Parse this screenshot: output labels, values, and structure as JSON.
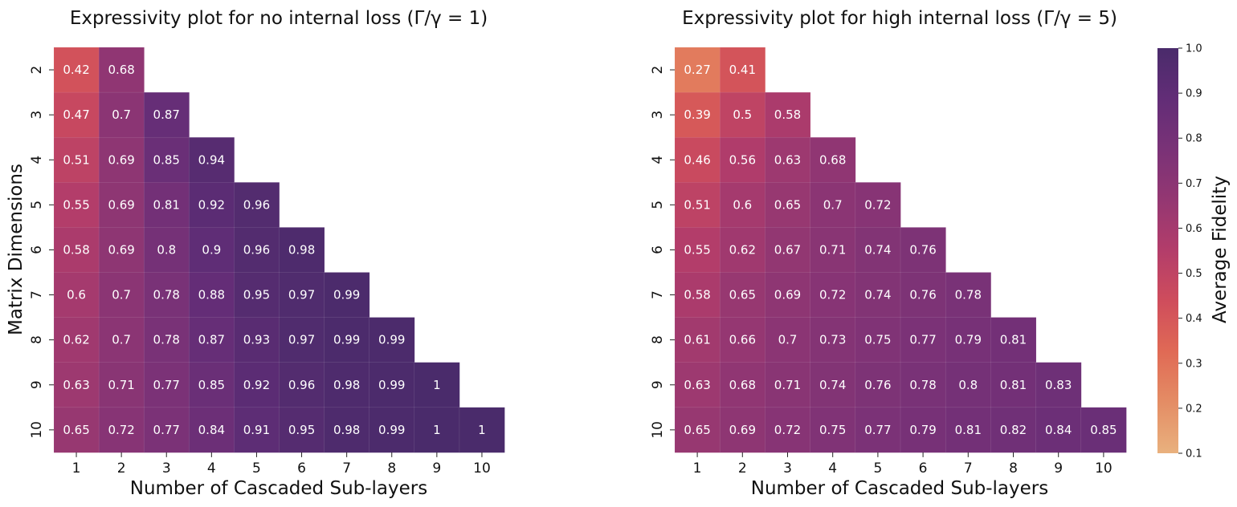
{
  "chart_data": [
    {
      "type": "heatmap",
      "title": "Expressivity plot for no internal loss (Γ/γ = 1)",
      "xlabel": "Number of Cascaded Sub-layers",
      "ylabel": "Matrix Dimensions",
      "x_categories": [
        "1",
        "2",
        "3",
        "4",
        "5",
        "6",
        "7",
        "8",
        "9",
        "10"
      ],
      "y_categories": [
        "2",
        "3",
        "4",
        "5",
        "6",
        "7",
        "8",
        "9",
        "10"
      ],
      "values": [
        [
          0.42,
          0.68
        ],
        [
          0.47,
          0.7,
          0.87
        ],
        [
          0.51,
          0.69,
          0.85,
          0.94
        ],
        [
          0.55,
          0.69,
          0.81,
          0.92,
          0.96
        ],
        [
          0.58,
          0.69,
          0.8,
          0.9,
          0.96,
          0.98
        ],
        [
          0.6,
          0.7,
          0.78,
          0.88,
          0.95,
          0.97,
          0.99
        ],
        [
          0.62,
          0.7,
          0.78,
          0.87,
          0.93,
          0.97,
          0.99,
          0.99
        ],
        [
          0.63,
          0.71,
          0.77,
          0.85,
          0.92,
          0.96,
          0.98,
          0.99,
          1
        ],
        [
          0.65,
          0.72,
          0.77,
          0.84,
          0.91,
          0.95,
          0.98,
          0.99,
          1,
          1
        ]
      ],
      "vmin": 0.1,
      "vmax": 1.0,
      "colormap": "flare"
    },
    {
      "type": "heatmap",
      "title": "Expressivity plot for high internal loss (Γ/γ = 5)",
      "xlabel": "Number of Cascaded Sub-layers",
      "ylabel": "",
      "x_categories": [
        "1",
        "2",
        "3",
        "4",
        "5",
        "6",
        "7",
        "8",
        "9",
        "10"
      ],
      "y_categories": [
        "2",
        "3",
        "4",
        "5",
        "6",
        "7",
        "8",
        "9",
        "10"
      ],
      "values": [
        [
          0.27,
          0.41
        ],
        [
          0.39,
          0.5,
          0.58
        ],
        [
          0.46,
          0.56,
          0.63,
          0.68
        ],
        [
          0.51,
          0.6,
          0.65,
          0.7,
          0.72
        ],
        [
          0.55,
          0.62,
          0.67,
          0.71,
          0.74,
          0.76
        ],
        [
          0.58,
          0.65,
          0.69,
          0.72,
          0.74,
          0.76,
          0.78
        ],
        [
          0.61,
          0.66,
          0.7,
          0.73,
          0.75,
          0.77,
          0.79,
          0.81
        ],
        [
          0.63,
          0.68,
          0.71,
          0.74,
          0.76,
          0.78,
          0.8,
          0.81,
          0.83
        ],
        [
          0.65,
          0.69,
          0.72,
          0.75,
          0.77,
          0.79,
          0.81,
          0.82,
          0.84,
          0.85
        ]
      ],
      "vmin": 0.1,
      "vmax": 1.0,
      "colormap": "flare"
    }
  ],
  "colorbar": {
    "label": "Average Fidelity",
    "ticks": [
      0.1,
      0.2,
      0.3,
      0.4,
      0.5,
      0.6,
      0.7,
      0.8,
      0.9,
      1.0
    ],
    "tick_labels": [
      "0.1",
      "0.2",
      "0.3",
      "0.4",
      "0.5",
      "0.6",
      "0.7",
      "0.8",
      "0.9",
      "1.0"
    ],
    "vmin": 0.1,
    "vmax": 1.0,
    "colors": [
      "#e9b17e",
      "#e48d65",
      "#e06a55",
      "#cf4d5c",
      "#b33d6a",
      "#943772",
      "#7a3277",
      "#622d77",
      "#4a2b6b"
    ]
  }
}
